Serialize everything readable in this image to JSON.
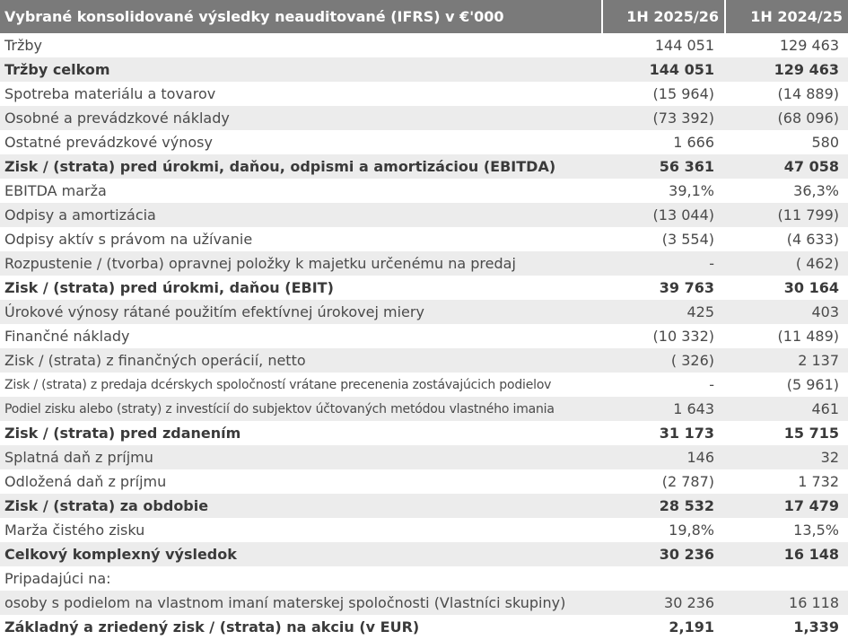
{
  "table": {
    "header": {
      "label": "Vybrané konsolidované výsledky neauditované (IFRS)  v €'000",
      "col1": "1H 2025/26",
      "col2": "1H 2024/25"
    },
    "rows": [
      {
        "label": "Tržby",
        "v1": "144 051",
        "v2": "129 463",
        "bold": false
      },
      {
        "label": "Tržby celkom",
        "v1": "144 051",
        "v2": "129 463",
        "bold": true
      },
      {
        "label": "Spotreba materiálu a tovarov",
        "v1": "(15 964)",
        "v2": "(14 889)",
        "bold": false
      },
      {
        "label": "Osobné a prevádzkové náklady",
        "v1": "(73 392)",
        "v2": "(68 096)",
        "bold": false
      },
      {
        "label": "Ostatné prevádzkové výnosy",
        "v1": "1 666",
        "v2": "580",
        "bold": false
      },
      {
        "label": "Zisk / (strata) pred úrokmi, daňou, odpismi a amortizáciou (EBITDA)",
        "v1": "56 361",
        "v2": "47 058",
        "bold": true
      },
      {
        "label": "EBITDA marža",
        "v1": "39,1%",
        "v2": "36,3%",
        "bold": false
      },
      {
        "label": "Odpisy a amortizácia",
        "v1": "(13 044)",
        "v2": "(11 799)",
        "bold": false
      },
      {
        "label": "Odpisy aktív s právom na užívanie",
        "v1": "(3 554)",
        "v2": "(4 633)",
        "bold": false
      },
      {
        "label": "Rozpustenie / (tvorba) opravnej položky k majetku určenému na predaj",
        "v1": "-",
        "v2": "( 462)",
        "bold": false
      },
      {
        "label": "Zisk / (strata) pred úrokmi, daňou (EBIT)",
        "v1": "39 763",
        "v2": "30 164",
        "bold": true
      },
      {
        "label": "Úrokové výnosy rátané použitím efektívnej úrokovej miery",
        "v1": "425",
        "v2": "403",
        "bold": false
      },
      {
        "label": "Finančné náklady",
        "v1": "(10 332)",
        "v2": "(11 489)",
        "bold": false
      },
      {
        "label": "Zisk / (strata) z finančných operácií, netto",
        "v1": "( 326)",
        "v2": "2 137",
        "bold": false
      },
      {
        "label": "Zisk / (strata) z predaja dcérskych spoločností vrátane precenenia zostávajúcich podielov",
        "v1": "-",
        "v2": "(5 961)",
        "bold": false,
        "small": true
      },
      {
        "label": "Podiel zisku alebo (straty) z investícií do subjektov účtovaných metódou vlastného imania",
        "v1": "1 643",
        "v2": "461",
        "bold": false,
        "small": true
      },
      {
        "label": "Zisk / (strata) pred zdanením",
        "v1": "31 173",
        "v2": "15 715",
        "bold": true
      },
      {
        "label": "Splatná daň z príjmu",
        "v1": "146",
        "v2": "32",
        "bold": false
      },
      {
        "label": "Odložená daň z príjmu",
        "v1": "(2 787)",
        "v2": "1 732",
        "bold": false
      },
      {
        "label": "Zisk / (strata) za obdobie",
        "v1": "28 532",
        "v2": "17 479",
        "bold": true
      },
      {
        "label": "Marža čistého zisku",
        "v1": "19,8%",
        "v2": "13,5%",
        "bold": false
      },
      {
        "label": "Celkový komplexný výsledok",
        "v1": "30 236",
        "v2": "16 148",
        "bold": true
      },
      {
        "label": "Pripadajúci na:",
        "v1": "",
        "v2": "",
        "bold": false
      },
      {
        "label": "osoby s podielom na vlastnom imaní materskej spoločnosti (Vlastníci skupiny)",
        "v1": "30 236",
        "v2": "16 118",
        "bold": false
      },
      {
        "label": "Základný a zriedený zisk / (strata) na akciu (v EUR)",
        "v1": "2,191",
        "v2": "1,339",
        "bold": true
      }
    ]
  }
}
